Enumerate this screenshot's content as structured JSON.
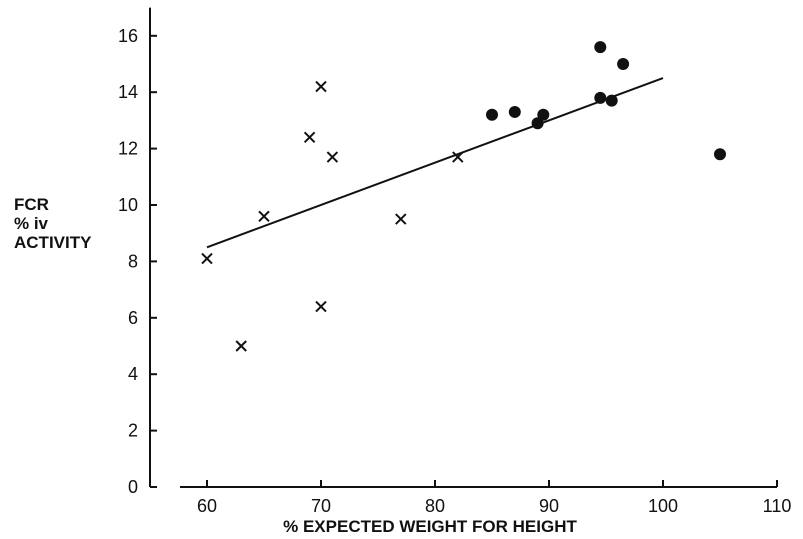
{
  "chart_data": {
    "type": "scatter",
    "xlabel": "% EXPECTED WEIGHT FOR HEIGHT",
    "ylabel": [
      "FCR",
      "% iv",
      "ACTIVITY"
    ],
    "xlim": [
      55,
      110
    ],
    "ylim": [
      0,
      17
    ],
    "xticks": [
      60,
      70,
      80,
      90,
      100,
      110
    ],
    "yticks": [
      0,
      2,
      4,
      6,
      8,
      10,
      12,
      14,
      16
    ],
    "grid": false,
    "series": [
      {
        "marker": "cross",
        "points": [
          {
            "x": 60,
            "y": 8.1
          },
          {
            "x": 63,
            "y": 5.0
          },
          {
            "x": 65,
            "y": 9.6
          },
          {
            "x": 69,
            "y": 12.4
          },
          {
            "x": 70,
            "y": 14.2
          },
          {
            "x": 70,
            "y": 6.4
          },
          {
            "x": 71,
            "y": 11.7
          },
          {
            "x": 77,
            "y": 9.5
          },
          {
            "x": 82,
            "y": 11.7
          }
        ]
      },
      {
        "marker": "filled-circle",
        "points": [
          {
            "x": 85,
            "y": 13.2
          },
          {
            "x": 87,
            "y": 13.3
          },
          {
            "x": 89,
            "y": 12.9
          },
          {
            "x": 89.5,
            "y": 13.2
          },
          {
            "x": 94.5,
            "y": 15.6
          },
          {
            "x": 94.5,
            "y": 13.8
          },
          {
            "x": 95.5,
            "y": 13.7
          },
          {
            "x": 96.5,
            "y": 15.0
          },
          {
            "x": 105,
            "y": 11.8
          }
        ]
      }
    ],
    "trendline": {
      "x1": 60,
      "y1": 8.5,
      "x2": 100,
      "y2": 14.5
    }
  }
}
